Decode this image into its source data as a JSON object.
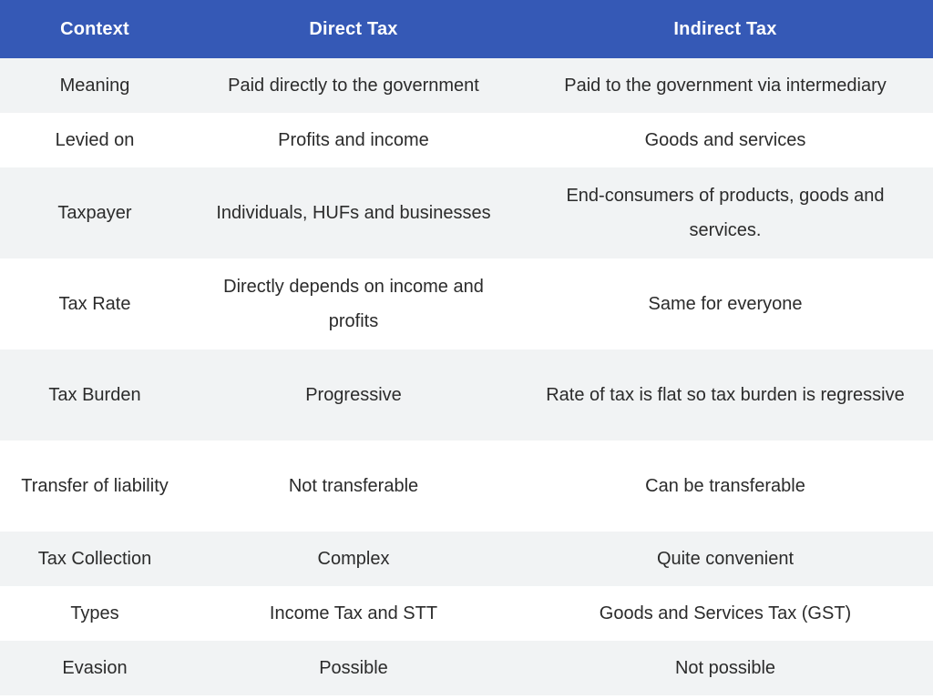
{
  "table": {
    "headers": [
      "Context",
      "Direct Tax",
      "Indirect Tax"
    ],
    "rows": [
      {
        "context": "Meaning",
        "direct": "Paid directly to the government",
        "indirect": "Paid to the government via intermediary"
      },
      {
        "context": "Levied on",
        "direct": "Profits and income",
        "indirect": "Goods and services"
      },
      {
        "context": "Taxpayer",
        "direct": "Individuals, HUFs and businesses",
        "indirect": "End-consumers of products, goods and services."
      },
      {
        "context": "Tax Rate",
        "direct": "Directly depends on income and profits",
        "indirect": "Same for everyone"
      },
      {
        "context": "Tax Burden",
        "direct": "Progressive",
        "indirect": "Rate of tax is flat so tax burden is regressive"
      },
      {
        "context": "Transfer of liability",
        "direct": "Not transferable",
        "indirect": "Can be transferable"
      },
      {
        "context": "Tax Collection",
        "direct": "Complex",
        "indirect": "Quite convenient"
      },
      {
        "context": "Types",
        "direct": "Income Tax and STT",
        "indirect": "Goods and Services Tax (GST)"
      },
      {
        "context": "Evasion",
        "direct": "Possible",
        "indirect": "Not possible"
      }
    ]
  },
  "colors": {
    "header_bg": "#3559b6",
    "header_text": "#ffffff",
    "stripe_bg": "#f1f3f4",
    "row_bg": "#ffffff",
    "body_text": "#2b2b2b"
  }
}
